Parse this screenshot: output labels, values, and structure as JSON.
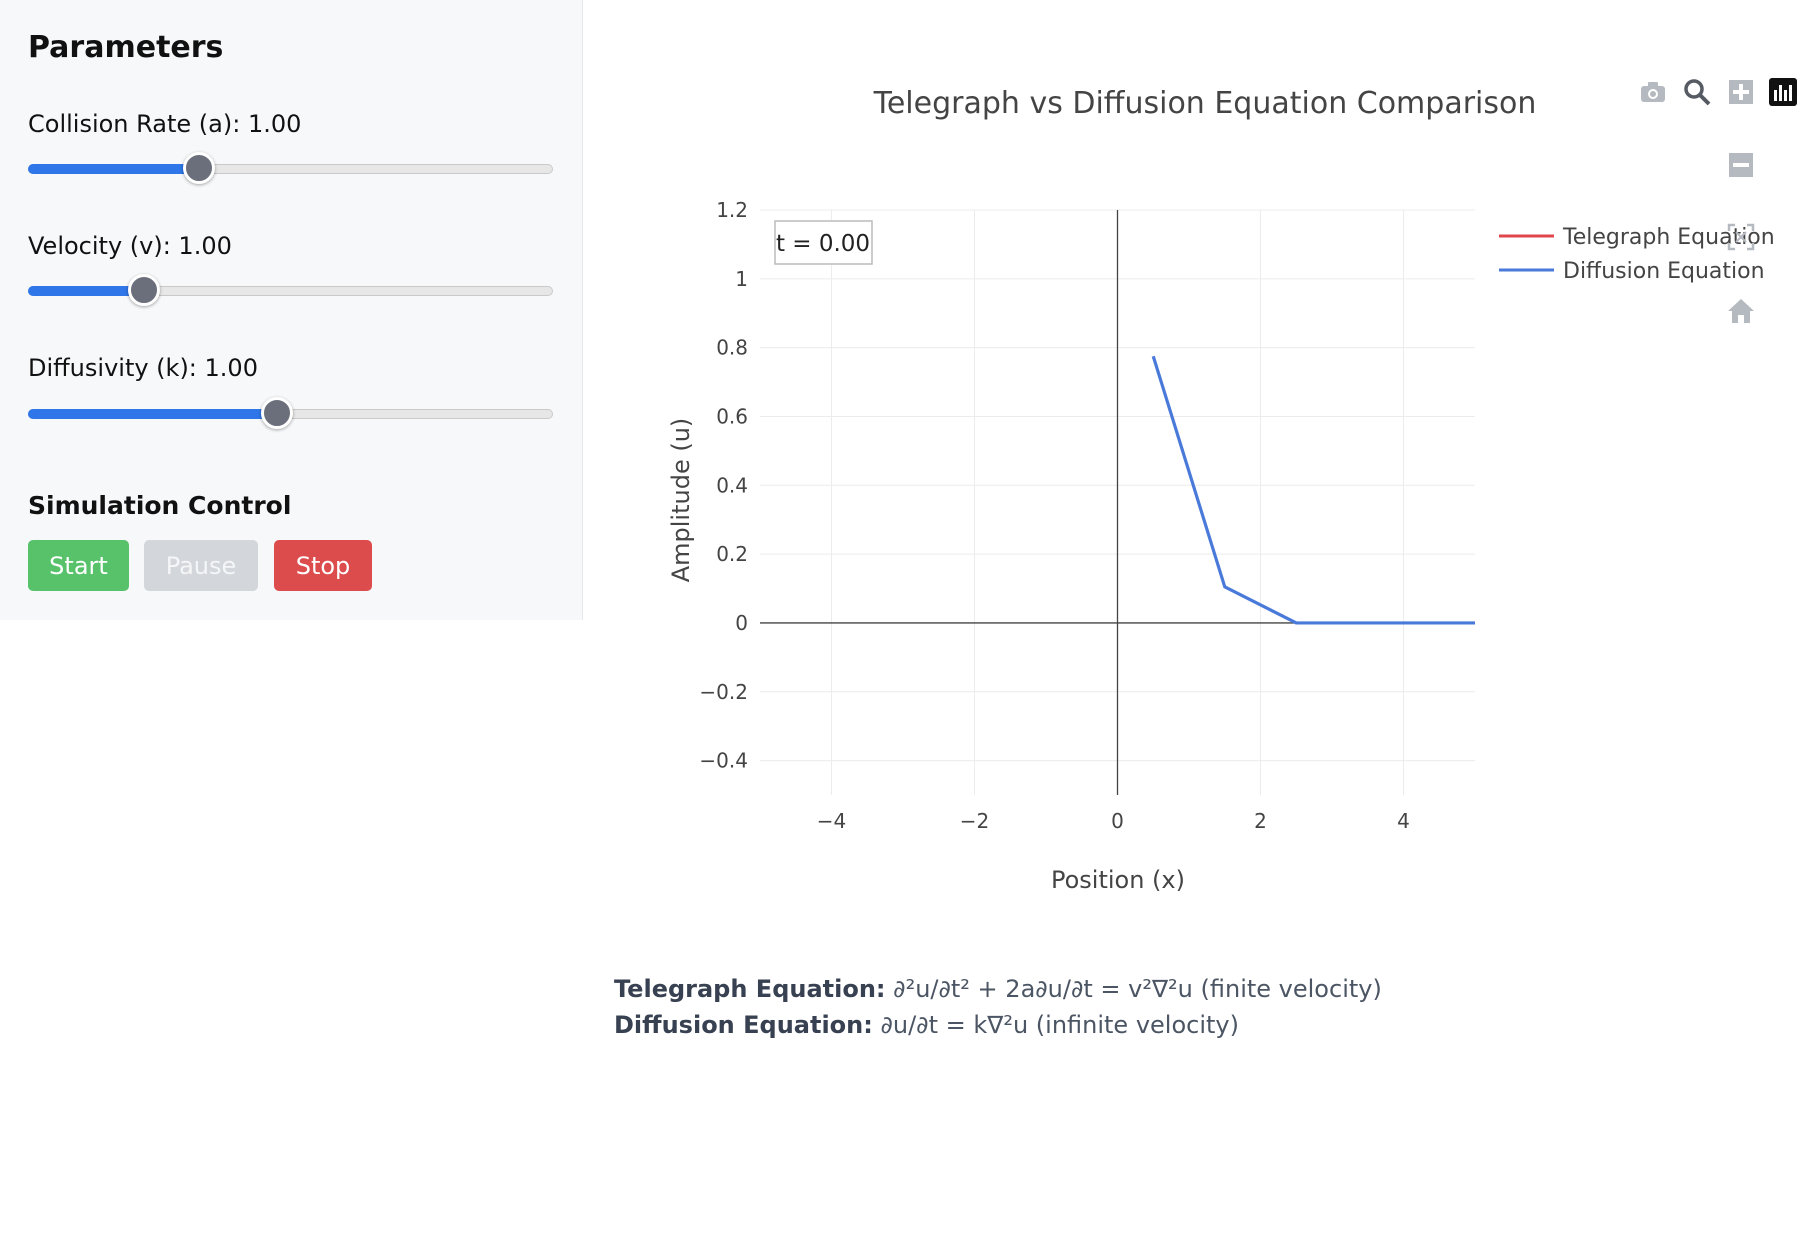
{
  "sidebar": {
    "title": "Parameters",
    "params": [
      {
        "label": "Collision Rate (a): 1.00",
        "fraction": 0.325
      },
      {
        "label": "Velocity (v): 1.00",
        "fraction": 0.22
      },
      {
        "label": "Diffusivity (k): 1.00",
        "fraction": 0.475
      }
    ],
    "simulation_title": "Simulation Control",
    "buttons": {
      "start": "Start",
      "pause": "Pause",
      "stop": "Stop"
    }
  },
  "chart_data": {
    "type": "line",
    "title": "Telegraph vs Diffusion Equation Comparison",
    "xlabel": "Position (x)",
    "ylabel": "Amplitude (u)",
    "xlim": [
      -5,
      5
    ],
    "ylim": [
      -0.5,
      1.2
    ],
    "xticks": [
      -4,
      -2,
      0,
      2,
      4
    ],
    "xtick_labels": [
      "−4",
      "−2",
      "0",
      "2",
      "4"
    ],
    "yticks": [
      1.2,
      1,
      0.8,
      0.6,
      0.4,
      0.2,
      0,
      -0.2,
      -0.4
    ],
    "ytick_labels": [
      "1.2",
      "1",
      "0.8",
      "0.6",
      "0.4",
      "0.2",
      "0",
      "−0.2",
      "−0.4"
    ],
    "grid": true,
    "legend_position": "top-right",
    "annotation": "t = 0.00",
    "series": [
      {
        "name": "Telegraph Equation",
        "color": "#e0474c",
        "x": [],
        "y": []
      },
      {
        "name": "Diffusion Equation",
        "color": "#4a7ad9",
        "x": [
          0.5,
          1.5,
          2.5,
          5
        ],
        "y": [
          0.775,
          0.105,
          0,
          0
        ]
      }
    ]
  },
  "modebar": [
    "camera-icon",
    "zoom-icon",
    "zoom-in-icon",
    "plotly-logo-icon",
    "zoom-out-icon",
    "autoscale-icon",
    "home-icon"
  ],
  "formulas": {
    "telegraph_label": "Telegraph Equation:",
    "telegraph_text": " ∂²u/∂t² + 2a∂u/∂t = v²∇²u (finite velocity)",
    "diffusion_label": "Diffusion Equation:",
    "diffusion_text": " ∂u/∂t = k∇²u (infinite velocity)"
  }
}
